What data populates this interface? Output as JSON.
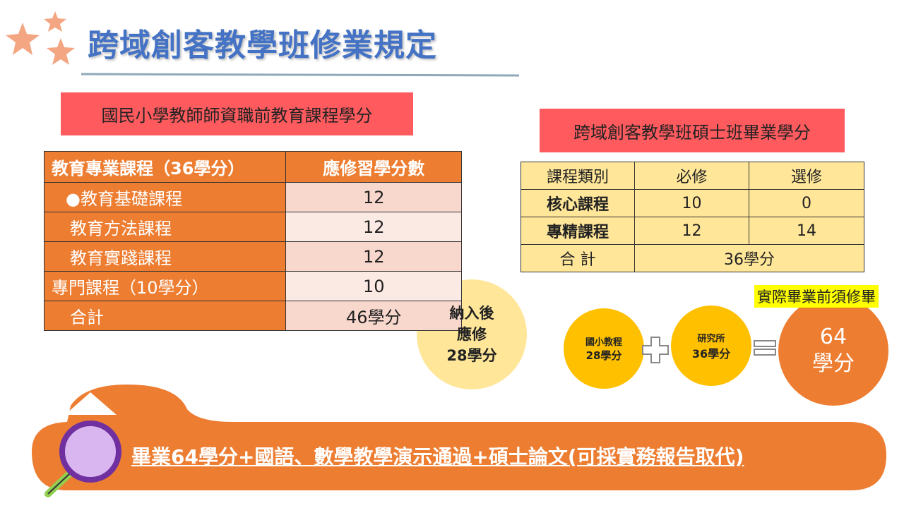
{
  "title": "跨域創客教學班修業規定",
  "left": {
    "heading": "國民小學教師師資職前教育課程學分",
    "table": {
      "header": [
        "教育專業課程（36學分）",
        "應修習學分數"
      ],
      "rows": [
        [
          "●教育基礎課程",
          12
        ],
        [
          "教育方法課程",
          12
        ],
        [
          "教育實踐課程",
          12
        ],
        [
          "專門課程（10學分）",
          10
        ],
        [
          "合計",
          "46學分"
        ]
      ]
    }
  },
  "bubble": [
    "納入後",
    "應修",
    "28學分"
  ],
  "right": {
    "heading": "跨域創客教學班碩士班畢業學分",
    "table": {
      "header": [
        "課程類別",
        "必修",
        "選修"
      ],
      "rows": [
        [
          "核心課程",
          10,
          0
        ],
        [
          "專精課程",
          12,
          14
        ],
        [
          "合 計",
          "36學分"
        ]
      ]
    }
  },
  "highlight": "實際畢業前須修畢",
  "equation": {
    "a": [
      "國小教程",
      "28學分"
    ],
    "b": [
      "研究所",
      "36學分"
    ],
    "result": [
      "64",
      "學分"
    ]
  },
  "footer": "畢業64學分+國語、數學教學演示通過+碩士論文(可採實務報告取代)"
}
